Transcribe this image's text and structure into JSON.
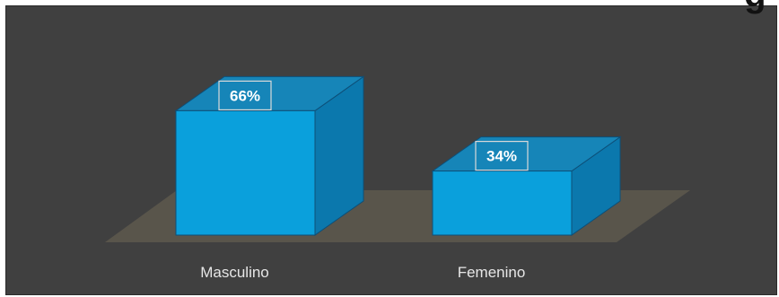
{
  "title_fragment": "g",
  "chart_data": {
    "type": "bar",
    "style": "3d-column",
    "categories": [
      "Masculino",
      "Femenino"
    ],
    "values": [
      66,
      34
    ],
    "value_labels": [
      "66%",
      "34%"
    ],
    "unit": "%",
    "ylim": [
      0,
      100
    ],
    "grid": false,
    "legend": "none",
    "colors": {
      "bar_front": "#0aa0dc",
      "bar_top": "#1685b8",
      "bar_side": "#0b78ad",
      "bar_edge": "#0d4f78",
      "floor": "#5b564c",
      "background": "#404040",
      "label_text": "#e6e6e6"
    }
  }
}
